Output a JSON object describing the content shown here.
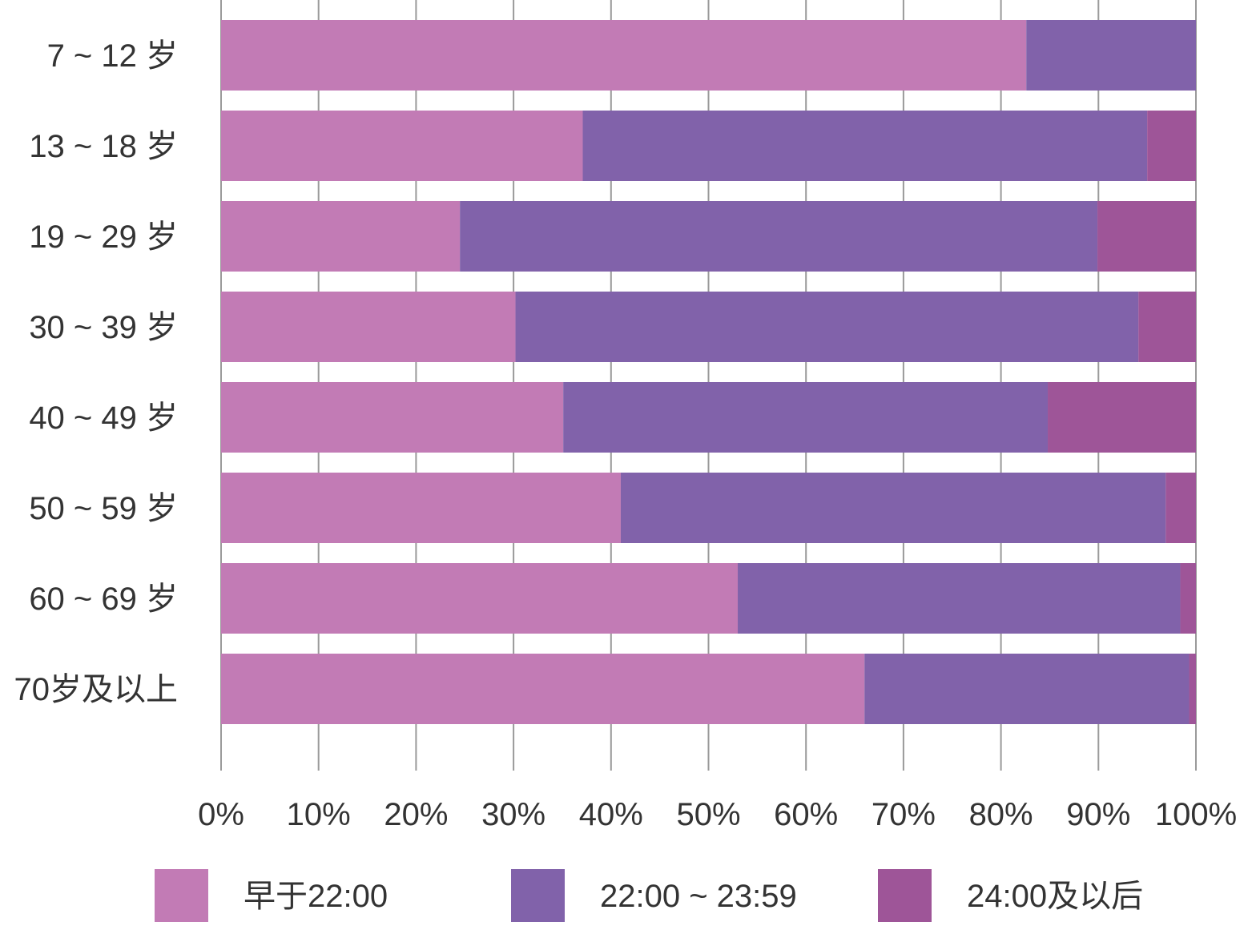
{
  "chart_data": {
    "type": "bar",
    "orientation": "horizontal",
    "stacked": true,
    "title": "",
    "xlabel": "",
    "ylabel": "",
    "xlim": [
      0,
      100
    ],
    "x_ticks": [
      "0%",
      "10%",
      "20%",
      "30%",
      "40%",
      "50%",
      "60%",
      "70%",
      "80%",
      "90%",
      "100%"
    ],
    "grid": true,
    "legend_position": "bottom",
    "categories": [
      "7 ~ 12 岁",
      "13 ~ 18 岁",
      "19 ~ 29 岁",
      "30 ~ 39 岁",
      "40 ~ 49 岁",
      "50 ~ 59 岁",
      "60 ~ 69 岁",
      "70岁及以上"
    ],
    "series": [
      {
        "name": "早于22:00",
        "color": "#c27bb5",
        "values": [
          82.6,
          37.1,
          24.5,
          30.2,
          35.1,
          41.0,
          53.0,
          66.0
        ]
      },
      {
        "name": "22:00 ~ 23:59",
        "color": "#8162aa",
        "values": [
          17.4,
          57.9,
          65.4,
          63.9,
          49.7,
          55.9,
          45.4,
          33.3
        ]
      },
      {
        "name": "24:00及以后",
        "color": "#9e5598",
        "values": [
          0.0,
          5.0,
          10.1,
          5.9,
          15.2,
          3.1,
          1.6,
          0.7
        ]
      }
    ]
  }
}
